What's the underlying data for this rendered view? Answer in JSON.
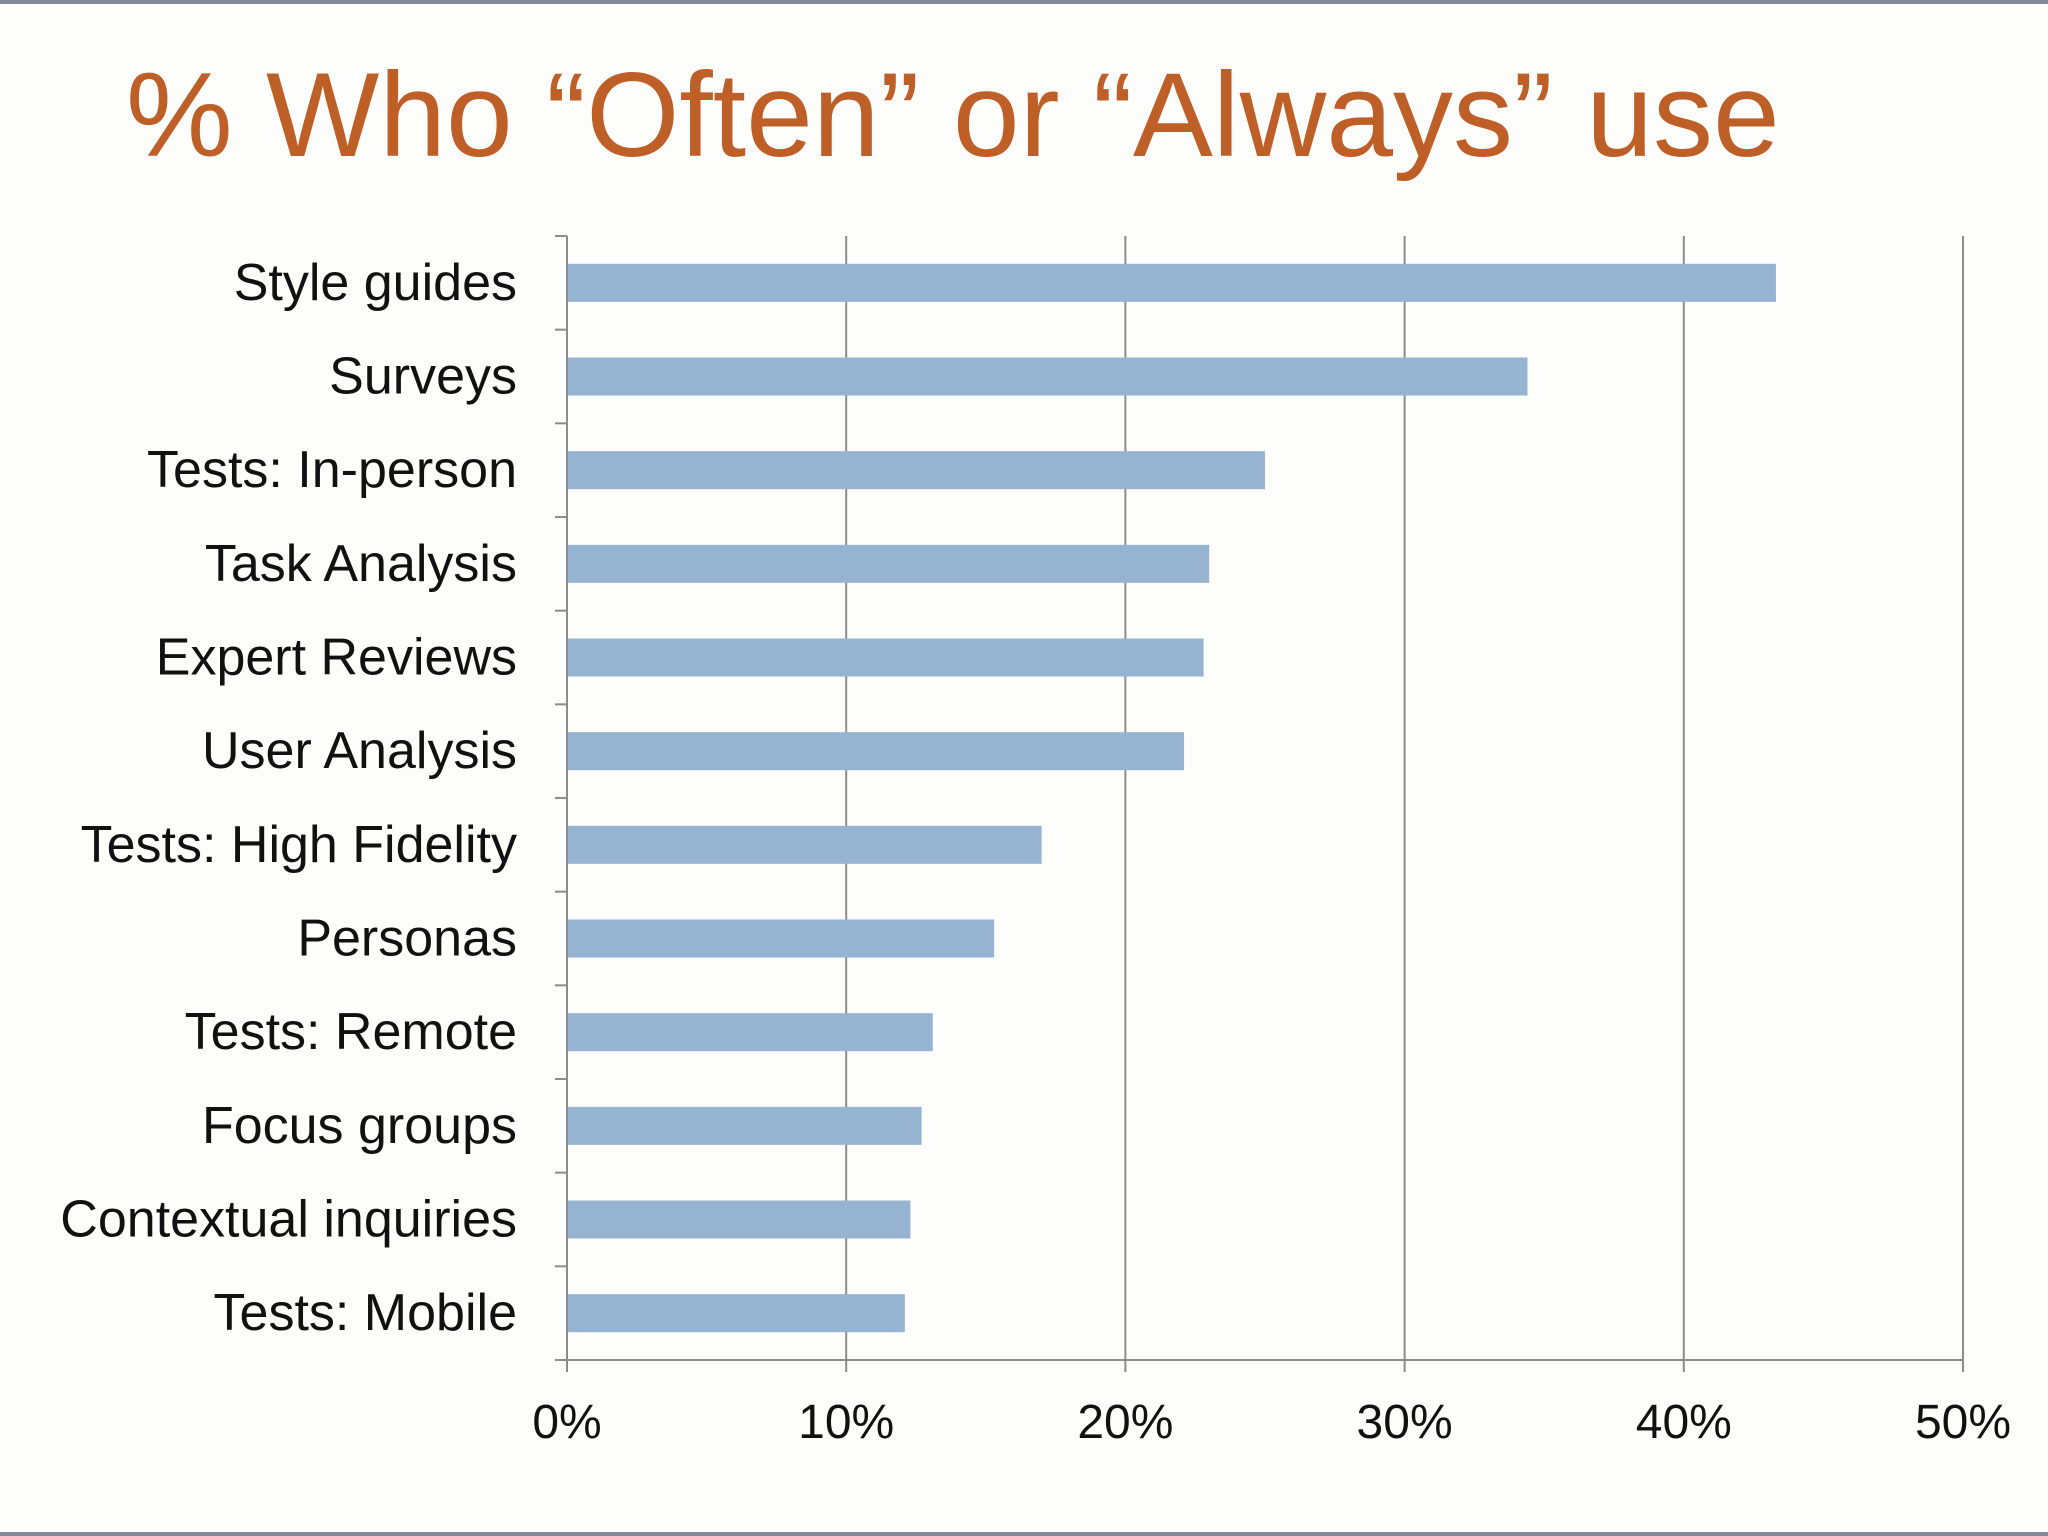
{
  "title": "% Who “Often” or “Always” use",
  "colors": {
    "title": "#bf5f28",
    "bar": "#96b4d1",
    "grid": "#8c8c8c",
    "text": "#111111"
  },
  "chart_data": {
    "type": "bar",
    "orientation": "horizontal",
    "title": "% Who “Often” or “Always” use",
    "categories": [
      "Style guides",
      "Surveys",
      "Tests: In-person",
      "Task Analysis",
      "Expert Reviews",
      "User Analysis",
      "Tests: High Fidelity",
      "Personas",
      "Tests: Remote",
      "Focus groups",
      "Contextual inquiries",
      "Tests: Mobile"
    ],
    "values": [
      43.3,
      34.4,
      25.0,
      23.0,
      22.8,
      22.1,
      17.0,
      15.3,
      13.1,
      12.7,
      12.3,
      12.1
    ],
    "value_unit": "%",
    "xlim": [
      0,
      50
    ],
    "xticks": [
      0,
      10,
      20,
      30,
      40,
      50
    ],
    "xtick_labels": [
      "0%",
      "10%",
      "20%",
      "30%",
      "40%",
      "50%"
    ],
    "xlabel": "",
    "ylabel": "",
    "grid": "vertical",
    "legend": "none"
  }
}
